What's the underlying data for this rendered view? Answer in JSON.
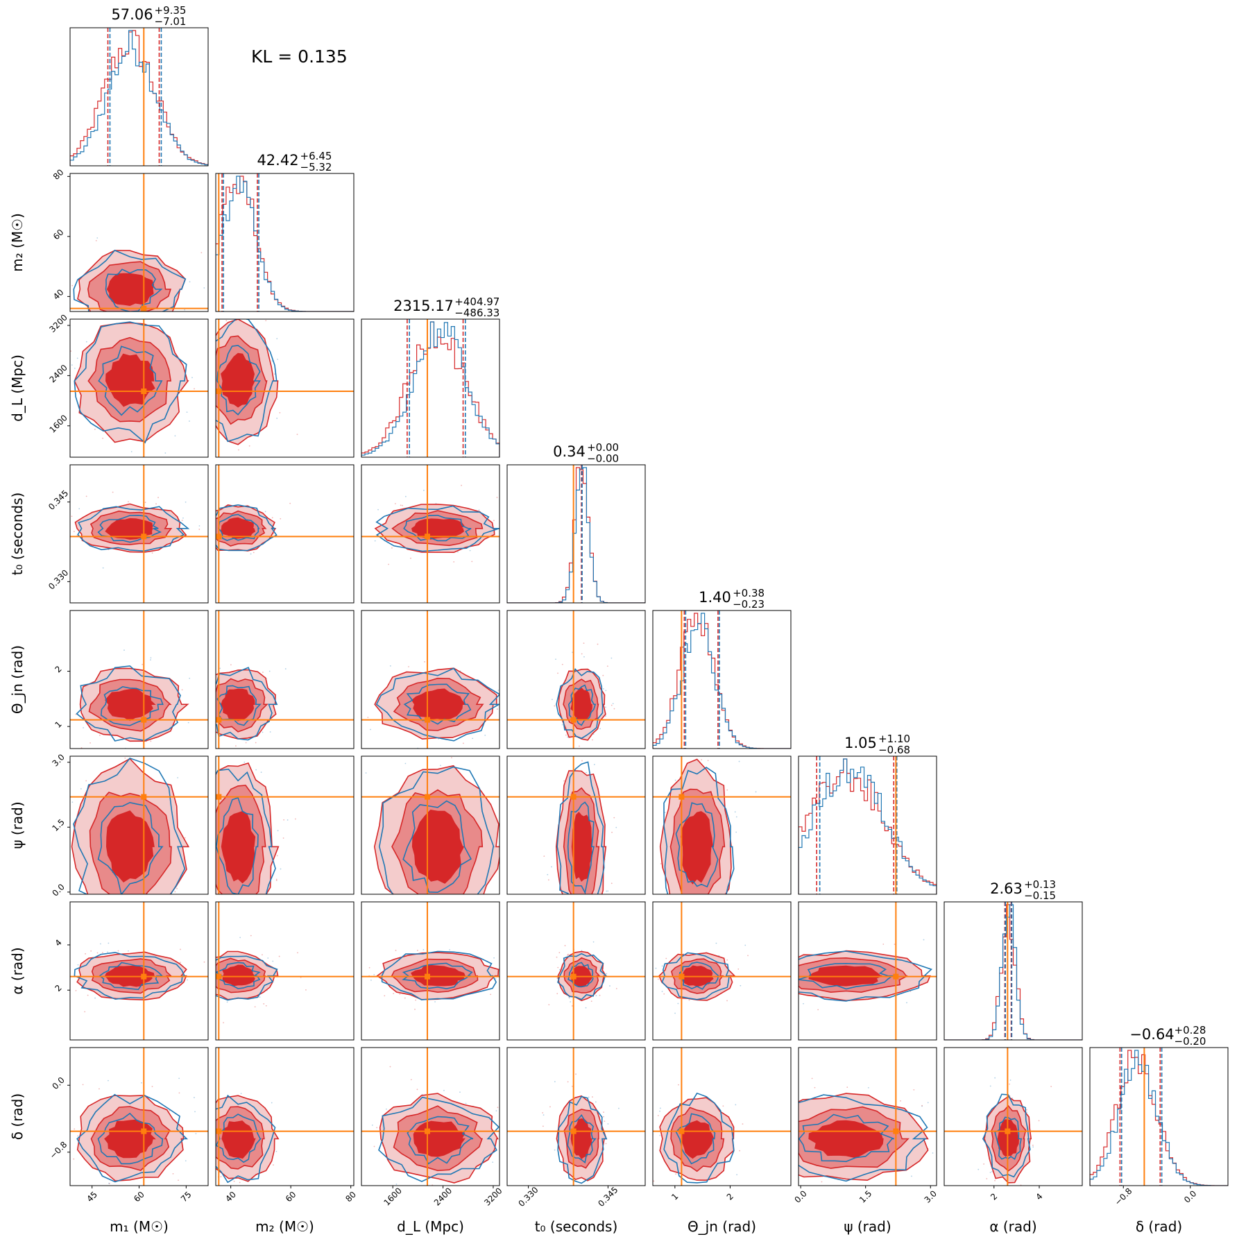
{
  "kl_text": "KL = 0.135",
  "colors": {
    "red": "#d62728",
    "red_mid": "#e88a8a",
    "red_light": "#f4cccc",
    "blue": "#1f77b4",
    "truth": "#ff7f0e"
  },
  "chart_data": {
    "type": "corner",
    "parameters": [
      {
        "label": "m₁ (M☉)",
        "median": 57.06,
        "err_plus": 9.35,
        "err_minus": 7.01,
        "title_main": "57.06",
        "title_plus": "+9.35",
        "title_minus": "−7.01",
        "range": [
          38,
          82
        ],
        "ticks": [
          45,
          60,
          75
        ],
        "tick_labels": [
          "45",
          "60",
          "75"
        ],
        "truth": 61.5
      },
      {
        "label": "m₂ (M☉)",
        "median": 42.42,
        "err_plus": 6.45,
        "err_minus": 5.32,
        "title_main": "42.42",
        "title_plus": "+6.45",
        "title_minus": "−5.32",
        "range": [
          35,
          81
        ],
        "ticks": [
          40,
          60,
          80
        ],
        "tick_labels": [
          "40",
          "60",
          "80"
        ],
        "truth": 36
      },
      {
        "label": "d_L (Mpc)",
        "median": 2315.17,
        "err_plus": 404.97,
        "err_minus": 486.33,
        "title_main": "2315.17",
        "title_plus": "+404.97",
        "title_minus": "−486.33",
        "range": [
          1100,
          3300
        ],
        "ticks": [
          1600,
          2400,
          3200
        ],
        "tick_labels": [
          "1600",
          "2400",
          "3200"
        ],
        "truth": 2150
      },
      {
        "label": "t₀ (seconds)",
        "median": 0.34,
        "err_plus": 0.0,
        "err_minus": 0.0,
        "title_main": "0.34",
        "title_plus": "+0.00",
        "title_minus": "−0.00",
        "range": [
          0.326,
          0.352
        ],
        "ticks": [
          0.33,
          0.345
        ],
        "tick_labels": [
          "0.330",
          "0.345"
        ],
        "truth": 0.3385
      },
      {
        "label": "Θ_jn (rad)",
        "median": 1.4,
        "err_plus": 0.38,
        "err_minus": 0.23,
        "title_main": "1.40",
        "title_plus": "+0.38",
        "title_minus": "−0.23",
        "range": [
          0.6,
          3.1
        ],
        "ticks": [
          1,
          2
        ],
        "tick_labels": [
          "1",
          "2"
        ],
        "truth": 1.12
      },
      {
        "label": "ψ (rad)",
        "median": 1.05,
        "err_plus": 1.1,
        "err_minus": 0.68,
        "title_main": "1.05",
        "title_plus": "+1.10",
        "title_minus": "−0.68",
        "range": [
          -0.05,
          3.14
        ],
        "ticks": [
          0.0,
          1.5,
          3.0
        ],
        "tick_labels": [
          "0.0",
          "1.5",
          "3.0"
        ],
        "truth": 2.2
      },
      {
        "label": "α (rad)",
        "median": 2.63,
        "err_plus": 0.13,
        "err_minus": 0.15,
        "title_main": "2.63",
        "title_plus": "+0.13",
        "title_minus": "−0.15",
        "range": [
          -0.2,
          5.9
        ],
        "ticks": [
          2,
          4
        ],
        "tick_labels": [
          "2",
          "4"
        ],
        "truth": 2.6
      },
      {
        "label": "δ (rad)",
        "median": -0.64,
        "err_plus": 0.28,
        "err_minus": 0.2,
        "title_main": "−0.64",
        "title_plus": "+0.28",
        "title_minus": "−0.20",
        "range": [
          -1.2,
          0.45
        ],
        "ticks": [
          -0.8,
          0.0
        ],
        "tick_labels": [
          "−0.8",
          "0.0"
        ],
        "truth": -0.55
      }
    ]
  }
}
